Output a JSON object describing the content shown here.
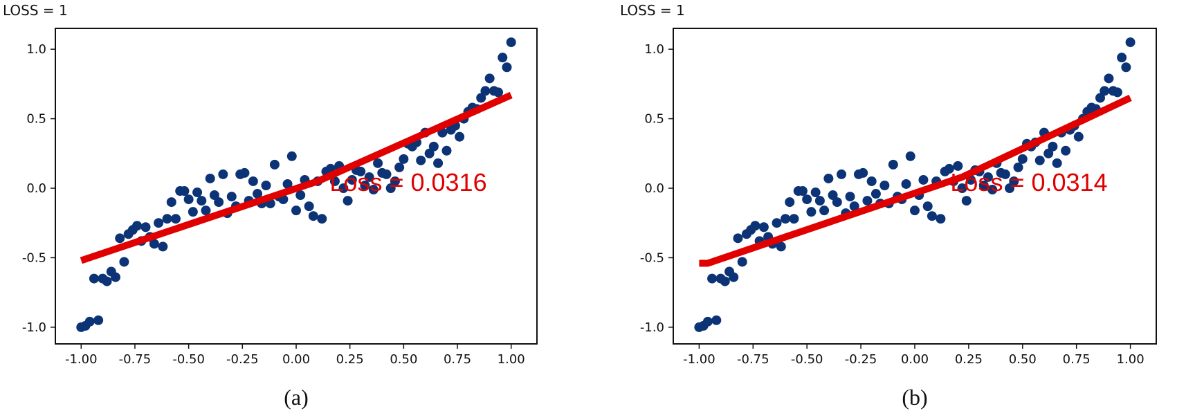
{
  "chart_data": [
    {
      "id": "a",
      "type": "scatter",
      "header": "LOSS = 1",
      "caption": "(a)",
      "annotation": "Loss = 0.0316",
      "xlim": [
        -1.12,
        1.12
      ],
      "ylim": [
        -1.12,
        1.15
      ],
      "xticks": [
        -1.0,
        -0.75,
        -0.5,
        -0.25,
        0.0,
        0.25,
        0.5,
        0.75,
        1.0
      ],
      "xtick_labels": [
        "-1.00",
        "-0.75",
        "-0.50",
        "-0.25",
        "0.00",
        "0.25",
        "0.50",
        "0.75",
        "1.00"
      ],
      "yticks": [
        1.0,
        0.5,
        0.0,
        -0.5,
        -1.0
      ],
      "ytick_labels": [
        "1.0",
        "0.5",
        "0.0",
        "-0.5",
        "-1.0"
      ],
      "series": [
        {
          "name": "data",
          "x": [
            -1.0,
            -0.98,
            -0.96,
            -0.94,
            -0.92,
            -0.9,
            -0.88,
            -0.86,
            -0.84,
            -0.82,
            -0.8,
            -0.78,
            -0.76,
            -0.74,
            -0.72,
            -0.7,
            -0.68,
            -0.66,
            -0.64,
            -0.62,
            -0.6,
            -0.58,
            -0.56,
            -0.54,
            -0.52,
            -0.5,
            -0.48,
            -0.46,
            -0.44,
            -0.42,
            -0.4,
            -0.38,
            -0.36,
            -0.34,
            -0.32,
            -0.3,
            -0.28,
            -0.26,
            -0.24,
            -0.22,
            -0.2,
            -0.18,
            -0.16,
            -0.14,
            -0.12,
            -0.1,
            -0.08,
            -0.06,
            -0.04,
            -0.02,
            0.0,
            0.02,
            0.04,
            0.06,
            0.08,
            0.1,
            0.12,
            0.14,
            0.16,
            0.18,
            0.2,
            0.22,
            0.24,
            0.26,
            0.28,
            0.3,
            0.32,
            0.34,
            0.36,
            0.38,
            0.4,
            0.42,
            0.44,
            0.46,
            0.48,
            0.5,
            0.52,
            0.54,
            0.56,
            0.58,
            0.6,
            0.62,
            0.64,
            0.66,
            0.68,
            0.7,
            0.72,
            0.74,
            0.76,
            0.78,
            0.8,
            0.82,
            0.84,
            0.86,
            0.88,
            0.9,
            0.92,
            0.94,
            0.96,
            0.98,
            1.0
          ],
          "y": [
            -1.0,
            -0.99,
            -0.96,
            -0.65,
            -0.95,
            -0.65,
            -0.67,
            -0.6,
            -0.64,
            -0.36,
            -0.53,
            -0.33,
            -0.3,
            -0.27,
            -0.38,
            -0.28,
            -0.35,
            -0.4,
            -0.25,
            -0.42,
            -0.22,
            -0.1,
            -0.22,
            -0.02,
            -0.02,
            -0.08,
            -0.17,
            -0.03,
            -0.09,
            -0.16,
            0.07,
            -0.05,
            -0.1,
            0.1,
            -0.18,
            -0.06,
            -0.13,
            0.1,
            0.11,
            -0.09,
            0.05,
            -0.04,
            -0.11,
            0.02,
            -0.11,
            0.17,
            -0.06,
            -0.08,
            0.03,
            0.23,
            -0.16,
            -0.05,
            0.06,
            -0.13,
            -0.2,
            0.05,
            -0.22,
            0.12,
            0.14,
            0.05,
            0.16,
            0.0,
            -0.09,
            0.06,
            0.13,
            0.12,
            0.02,
            0.08,
            -0.01,
            0.18,
            0.11,
            0.1,
            0.0,
            0.05,
            0.15,
            0.21,
            0.32,
            0.3,
            0.33,
            0.2,
            0.4,
            0.25,
            0.3,
            0.18,
            0.4,
            0.27,
            0.42,
            0.45,
            0.37,
            0.5,
            0.55,
            0.58,
            0.57,
            0.65,
            0.7,
            0.79,
            0.7,
            0.69,
            0.94,
            0.87,
            1.05
          ]
        },
        {
          "name": "fit",
          "x": [
            -1.0,
            0.1,
            1.0
          ],
          "y": [
            -0.52,
            0.05,
            0.67
          ]
        }
      ]
    },
    {
      "id": "b",
      "type": "scatter",
      "header": "LOSS = 1",
      "caption": "(b)",
      "annotation": "Loss = 0.0314",
      "xlim": [
        -1.12,
        1.12
      ],
      "ylim": [
        -1.12,
        1.15
      ],
      "xticks": [
        -1.0,
        -0.75,
        -0.5,
        -0.25,
        0.0,
        0.25,
        0.5,
        0.75,
        1.0
      ],
      "xtick_labels": [
        "-1.00",
        "-0.75",
        "-0.50",
        "-0.25",
        "0.00",
        "0.25",
        "0.50",
        "0.75",
        "1.00"
      ],
      "yticks": [
        1.0,
        0.5,
        0.0,
        -0.5,
        -1.0
      ],
      "ytick_labels": [
        "1.0",
        "0.5",
        "0.0",
        "-0.5",
        "-1.0"
      ],
      "series": [
        {
          "name": "data",
          "x": [
            -1.0,
            -0.98,
            -0.96,
            -0.94,
            -0.92,
            -0.9,
            -0.88,
            -0.86,
            -0.84,
            -0.82,
            -0.8,
            -0.78,
            -0.76,
            -0.74,
            -0.72,
            -0.7,
            -0.68,
            -0.66,
            -0.64,
            -0.62,
            -0.6,
            -0.58,
            -0.56,
            -0.54,
            -0.52,
            -0.5,
            -0.48,
            -0.46,
            -0.44,
            -0.42,
            -0.4,
            -0.38,
            -0.36,
            -0.34,
            -0.32,
            -0.3,
            -0.28,
            -0.26,
            -0.24,
            -0.22,
            -0.2,
            -0.18,
            -0.16,
            -0.14,
            -0.12,
            -0.1,
            -0.08,
            -0.06,
            -0.04,
            -0.02,
            0.0,
            0.02,
            0.04,
            0.06,
            0.08,
            0.1,
            0.12,
            0.14,
            0.16,
            0.18,
            0.2,
            0.22,
            0.24,
            0.26,
            0.28,
            0.3,
            0.32,
            0.34,
            0.36,
            0.38,
            0.4,
            0.42,
            0.44,
            0.46,
            0.48,
            0.5,
            0.52,
            0.54,
            0.56,
            0.58,
            0.6,
            0.62,
            0.64,
            0.66,
            0.68,
            0.7,
            0.72,
            0.74,
            0.76,
            0.78,
            0.8,
            0.82,
            0.84,
            0.86,
            0.88,
            0.9,
            0.92,
            0.94,
            0.96,
            0.98,
            1.0
          ],
          "y": [
            -1.0,
            -0.99,
            -0.96,
            -0.65,
            -0.95,
            -0.65,
            -0.67,
            -0.6,
            -0.64,
            -0.36,
            -0.53,
            -0.33,
            -0.3,
            -0.27,
            -0.38,
            -0.28,
            -0.35,
            -0.4,
            -0.25,
            -0.42,
            -0.22,
            -0.1,
            -0.22,
            -0.02,
            -0.02,
            -0.08,
            -0.17,
            -0.03,
            -0.09,
            -0.16,
            0.07,
            -0.05,
            -0.1,
            0.1,
            -0.18,
            -0.06,
            -0.13,
            0.1,
            0.11,
            -0.09,
            0.05,
            -0.04,
            -0.11,
            0.02,
            -0.11,
            0.17,
            -0.06,
            -0.08,
            0.03,
            0.23,
            -0.16,
            -0.05,
            0.06,
            -0.13,
            -0.2,
            0.05,
            -0.22,
            0.12,
            0.14,
            0.05,
            0.16,
            0.0,
            -0.09,
            0.06,
            0.13,
            0.12,
            0.02,
            0.08,
            -0.01,
            0.18,
            0.11,
            0.1,
            0.0,
            0.05,
            0.15,
            0.21,
            0.32,
            0.3,
            0.33,
            0.2,
            0.4,
            0.25,
            0.3,
            0.18,
            0.4,
            0.27,
            0.42,
            0.45,
            0.37,
            0.5,
            0.55,
            0.58,
            0.57,
            0.65,
            0.7,
            0.79,
            0.7,
            0.69,
            0.94,
            0.87,
            1.05
          ]
        },
        {
          "name": "fit",
          "x": [
            -1.0,
            -0.96,
            0.22,
            1.0
          ],
          "y": [
            -0.54,
            -0.54,
            0.08,
            0.65
          ]
        }
      ]
    }
  ],
  "colors": {
    "points": "#0c3375",
    "fit": "#e00000",
    "annotation": "#e00000",
    "axes": "#111111"
  }
}
